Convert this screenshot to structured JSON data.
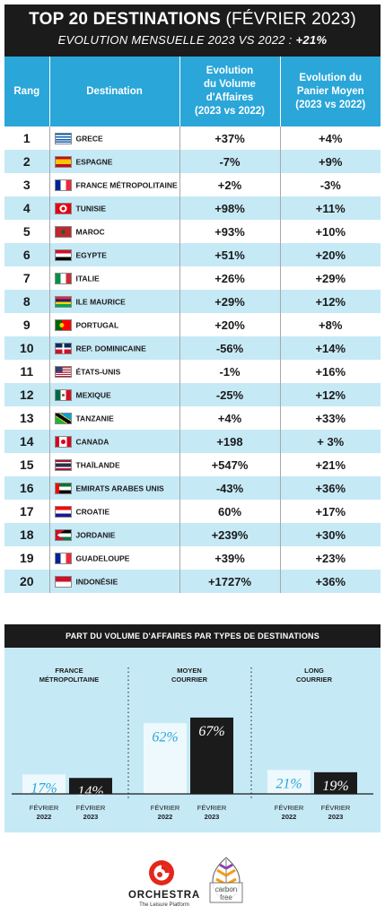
{
  "header": {
    "title_bold": "TOP 20 DESTINATIONS",
    "title_thin": "(FÉVRIER 2023)",
    "subtitle": "EVOLUTION MENSUELLE 2023 VS 2022 :",
    "subtitle_value": "+21%"
  },
  "table": {
    "columns": {
      "rank": "Rang",
      "destination": "Destination",
      "volume": [
        "Evolution",
        "du Volume",
        "d'Affaires",
        "(2023 vs 2022)"
      ],
      "panier": [
        "Evolution du",
        "Panier Moyen",
        "(2023 vs 2022)"
      ]
    },
    "rows": [
      {
        "rank": "1",
        "destination": "GRECE",
        "flag": "greece-flag",
        "volume": "+37%",
        "panier": "+4%"
      },
      {
        "rank": "2",
        "destination": "ESPAGNE",
        "flag": "spain-flag",
        "volume": "-7%",
        "panier": "+9%"
      },
      {
        "rank": "3",
        "destination": "FRANCE MÉTROPOLITAINE",
        "flag": "france-flag",
        "volume": "+2%",
        "panier": "-3%"
      },
      {
        "rank": "4",
        "destination": "TUNISIE",
        "flag": "tunisia-flag",
        "volume": "+98%",
        "panier": "+11%"
      },
      {
        "rank": "5",
        "destination": "MAROC",
        "flag": "morocco-flag",
        "volume": "+93%",
        "panier": "+10%"
      },
      {
        "rank": "6",
        "destination": "EGYPTE",
        "flag": "egypt-flag",
        "volume": "+51%",
        "panier": "+20%"
      },
      {
        "rank": "7",
        "destination": "ITALIE",
        "flag": "italy-flag",
        "volume": "+26%",
        "panier": "+29%"
      },
      {
        "rank": "8",
        "destination": "ILE MAURICE",
        "flag": "mauritius-flag",
        "volume": "+29%",
        "panier": "+12%"
      },
      {
        "rank": "9",
        "destination": "PORTUGAL",
        "flag": "portugal-flag",
        "volume": "+20%",
        "panier": "+8%"
      },
      {
        "rank": "10",
        "destination": "REP. DOMINICAINE",
        "flag": "dominican-flag",
        "volume": "-56%",
        "panier": "+14%"
      },
      {
        "rank": "11",
        "destination": "ÉTATS-UNIS",
        "flag": "usa-flag",
        "volume": "-1%",
        "panier": "+16%"
      },
      {
        "rank": "12",
        "destination": "MEXIQUE",
        "flag": "mexico-flag",
        "volume": "-25%",
        "panier": "+12%"
      },
      {
        "rank": "13",
        "destination": "TANZANIE",
        "flag": "tanzania-flag",
        "volume": "+4%",
        "panier": "+33%"
      },
      {
        "rank": "14",
        "destination": "CANADA",
        "flag": "canada-flag",
        "volume": "+198",
        "panier": "+ 3%"
      },
      {
        "rank": "15",
        "destination": "THAÏLANDE",
        "flag": "thailand-flag",
        "volume": "+547%",
        "panier": "+21%"
      },
      {
        "rank": "16",
        "destination": "EMIRATS ARABES UNIS",
        "flag": "uae-flag",
        "volume": "-43%",
        "panier": "+36%"
      },
      {
        "rank": "17",
        "destination": "CROATIE",
        "flag": "croatia-flag",
        "volume": "60%",
        "panier": "+17%"
      },
      {
        "rank": "18",
        "destination": "JORDANIE",
        "flag": "jordan-flag",
        "volume": "+239%",
        "panier": "+30%"
      },
      {
        "rank": "19",
        "destination": "GUADELOUPE",
        "flag": "guadeloupe-flag",
        "volume": "+39%",
        "panier": "+23%"
      },
      {
        "rank": "20",
        "destination": "INDONÉSIE",
        "flag": "indonesia-flag",
        "volume": "+1727%",
        "panier": "+36%"
      }
    ]
  },
  "flag_colors": {
    "greece": [
      "#0d5eaf",
      "#ffffff"
    ],
    "spain": [
      "#c60b1e",
      "#ffc400"
    ],
    "france": [
      "#002395",
      "#ffffff",
      "#ed2939"
    ],
    "tunisia": [
      "#e70013",
      "#ffffff"
    ],
    "morocco": [
      "#c1272d",
      "#006233"
    ],
    "egypt": [
      "#ce1126",
      "#ffffff",
      "#000000"
    ],
    "italy": [
      "#009246",
      "#ffffff",
      "#ce2b37"
    ],
    "mauritius": [
      "#ea2839",
      "#1a206d",
      "#ffd500",
      "#00a551"
    ],
    "portugal": [
      "#006600",
      "#ff0000",
      "#ffcc00"
    ],
    "dominican": [
      "#002d62",
      "#ce1126",
      "#ffffff"
    ],
    "usa": [
      "#b22234",
      "#ffffff",
      "#3c3b6e"
    ],
    "mexico": [
      "#006847",
      "#ffffff",
      "#ce1126"
    ],
    "tanzania": [
      "#1eb53a",
      "#00a3dd",
      "#fcd116",
      "#000000"
    ],
    "canada": [
      "#d80621",
      "#ffffff"
    ],
    "thailand": [
      "#a51931",
      "#f4f5f8",
      "#2d2a4a"
    ],
    "uae": [
      "#00732f",
      "#ffffff",
      "#000000",
      "#ff0000"
    ],
    "croatia": [
      "#ff0000",
      "#ffffff",
      "#171796"
    ],
    "jordan": [
      "#000000",
      "#ffffff",
      "#007a3d",
      "#ce1126"
    ],
    "indonesia": [
      "#ce1126",
      "#ffffff"
    ]
  },
  "part_title": "PART DU VOLUME D'AFFAIRES PAR TYPES DE DESTINATIONS",
  "chart_data": {
    "type": "bar",
    "title": "PART DU VOLUME D'AFFAIRES PAR TYPES DE DESTINATIONS",
    "groups": [
      {
        "name": [
          "FRANCE",
          "MÉTROPOLITAINE"
        ],
        "values": [
          17,
          14
        ],
        "labels": [
          "17%",
          "14%"
        ]
      },
      {
        "name": [
          "MOYEN",
          "COURRIER"
        ],
        "values": [
          62,
          67
        ],
        "labels": [
          "62%",
          "67%"
        ]
      },
      {
        "name": [
          "LONG",
          "COURRIER"
        ],
        "values": [
          21,
          19
        ],
        "labels": [
          "21%",
          "19%"
        ]
      }
    ],
    "series": [
      {
        "name": "FÉVRIER 2022",
        "axis_label": [
          "FÉVRIER",
          "2022"
        ],
        "color": "#eef9fd",
        "text_color": "#2aa6d9"
      },
      {
        "name": "FÉVRIER 2023",
        "axis_label": [
          "FÉVRIER",
          "2023"
        ],
        "color": "#1b1b1b",
        "text_color": "#ffffff"
      }
    ],
    "unit": "%",
    "ylim": [
      0,
      100
    ],
    "grid": false
  },
  "colors": {
    "header_bg": "#1b1b1b",
    "table_header_bg": "#2aa6d9",
    "row_alt_bg": "#c6e9f6",
    "accent_red": "#e4261b"
  },
  "logos": {
    "orchestra_name": "ORCHESTRA",
    "orchestra_tagline": "The Leisure Platform",
    "carbon_text": "carbon free"
  }
}
